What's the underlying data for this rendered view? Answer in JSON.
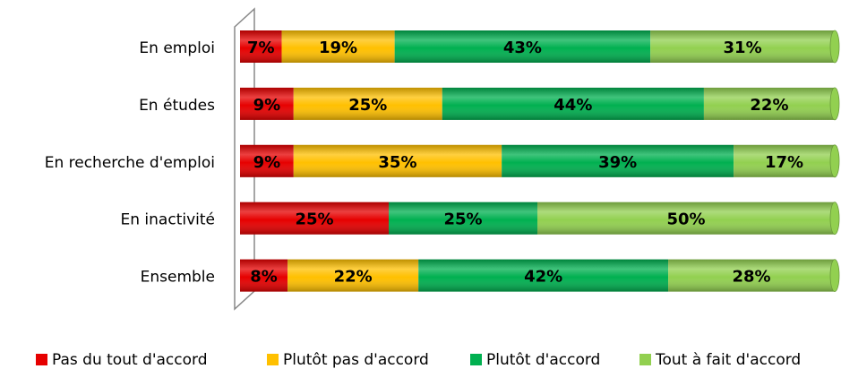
{
  "chart_data": {
    "type": "stacked-bar-horizontal",
    "categories": [
      "En emploi",
      "En études",
      "En recherche d'emploi",
      "En inactivité",
      "Ensemble"
    ],
    "xlim": [
      0,
      100
    ],
    "series": [
      {
        "name": "Pas du tout d'accord",
        "color": "#e60000",
        "values": [
          7,
          9,
          9,
          25,
          8
        ],
        "value_labels": [
          "7%",
          "9%",
          "9%",
          "25%",
          "8%"
        ]
      },
      {
        "name": "Plutôt pas d'accord",
        "color": "#ffc000",
        "values": [
          19,
          25,
          35,
          null,
          22
        ],
        "value_labels": [
          "19%",
          "25%",
          "35%",
          null,
          "22%"
        ]
      },
      {
        "name": "Plutôt d'accord",
        "color": "#00b050",
        "values": [
          43,
          44,
          39,
          25,
          42
        ],
        "value_labels": [
          "43%",
          "44%",
          "39%",
          "25%",
          "42%"
        ]
      },
      {
        "name": "Tout à fait d'accord",
        "color": "#92d050",
        "values": [
          31,
          22,
          17,
          50,
          28
        ],
        "value_labels": [
          "31%",
          "22%",
          "17%",
          "50%",
          "28%"
        ]
      }
    ]
  }
}
